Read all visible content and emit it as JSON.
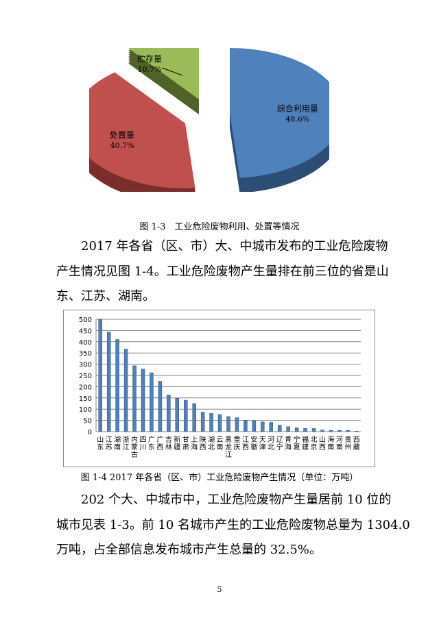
{
  "chart_data": [
    {
      "type": "pie",
      "title": "",
      "slices": [
        {
          "label": "综合利用量",
          "value": 48.6,
          "display": "48.6%",
          "color": "#4f81bd"
        },
        {
          "label": "处置量",
          "value": 40.7,
          "display": "40.7%",
          "color": "#c0504d"
        },
        {
          "label": "贮存量",
          "value": 10.7,
          "display": "10.7%",
          "color": "#9bbb59"
        }
      ],
      "style": "3d-exploded"
    },
    {
      "type": "bar",
      "title": "",
      "categories": [
        "山东",
        "江苏",
        "湖南",
        "浙江",
        "内蒙古",
        "四川",
        "广东",
        "广西",
        "吉林",
        "新疆",
        "甘肃",
        "上海",
        "陕西",
        "湖北",
        "云南",
        "黑龙江",
        "重庆",
        "江西",
        "安徽",
        "天津",
        "河北",
        "辽宁",
        "青海",
        "宁夏",
        "福建",
        "北京",
        "山西",
        "海南",
        "河南",
        "贵州",
        "西藏"
      ],
      "values": [
        500,
        443,
        410,
        367,
        293,
        278,
        262,
        224,
        163,
        149,
        140,
        125,
        86,
        81,
        76,
        67,
        62,
        51,
        49,
        43,
        41,
        29,
        22,
        17,
        14,
        14,
        7,
        5,
        5,
        5,
        2
      ],
      "ylim": [
        0,
        500
      ],
      "yticks": [
        0,
        50,
        100,
        150,
        200,
        250,
        300,
        350,
        400,
        450,
        500
      ],
      "grid": true,
      "color": "#4f81bd"
    }
  ],
  "captions": {
    "fig13": "图 1-3　工业危险废物利用、处置等情况",
    "fig14": "图 1-4 2017 年各省（区、市）工业危险废物产生情况（单位：万吨）"
  },
  "para1": [
    "2017 年各省（区、市）大、中城市发布的工业危险废物",
    "产生情况见图 1-4。工业危险废物产生量排在前三位的省是山",
    "东、江苏、湖南。"
  ],
  "para2": [
    "202 个大、中城市中，工业危险废物产生量居前 10 位的",
    "城市见表 1-3。前 10 名城市产生的工业危险废物总量为 1304.0",
    "万吨，占全部信息发布城市产生总量的 32.5%。"
  ],
  "page_number": "5"
}
